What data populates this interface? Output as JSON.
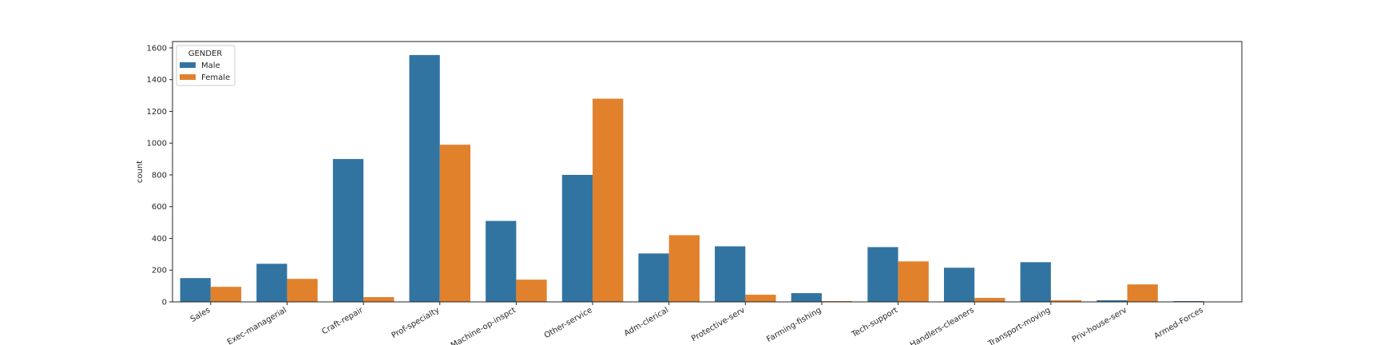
{
  "chart_data": {
    "type": "bar",
    "xlabel": "",
    "ylabel": "count",
    "ylim": [
      0,
      1640
    ],
    "yticks": [
      0,
      200,
      400,
      600,
      800,
      1000,
      1200,
      1400,
      1600
    ],
    "categories": [
      "Sales",
      "Exec-managerial",
      "Craft-repair",
      "Prof-specialty",
      "Machine-op-inspct",
      "Other-service",
      "Adm-clerical",
      "Protective-serv",
      "Farming-fishing",
      "Tech-support",
      "Handlers-cleaners",
      "Transport-moving",
      "Priv-house-serv",
      "Armed-Forces"
    ],
    "series": [
      {
        "name": "Male",
        "color": "#3274a1",
        "values": [
          150,
          240,
          900,
          1555,
          510,
          800,
          305,
          350,
          55,
          345,
          215,
          250,
          10,
          5
        ]
      },
      {
        "name": "Female",
        "color": "#e1812c",
        "values": [
          95,
          145,
          30,
          990,
          140,
          1280,
          420,
          45,
          5,
          255,
          25,
          10,
          110,
          0
        ]
      }
    ],
    "legend": {
      "title": "GENDER",
      "placement": "top-left"
    },
    "grid": false
  }
}
